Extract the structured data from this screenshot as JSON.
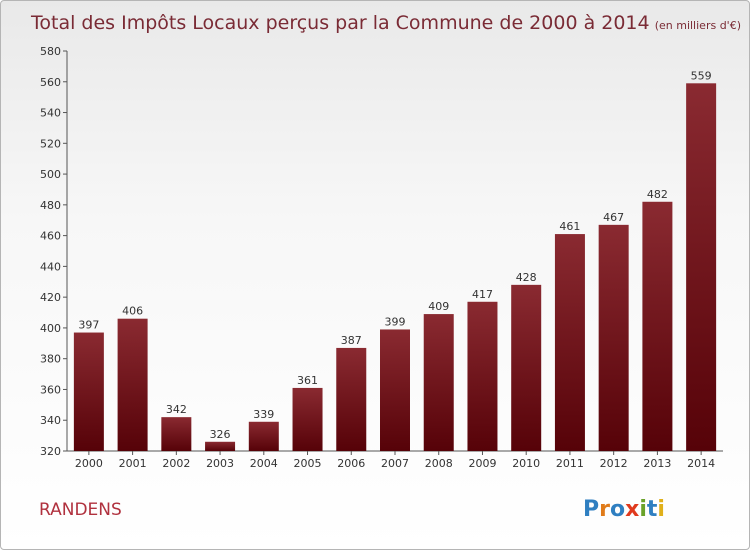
{
  "chart_data": {
    "type": "bar",
    "title": "Total des Impôts Locaux perçus par la Commune de 2000 à 2014",
    "subtitle": "(en milliers d'€)",
    "categories": [
      "2000",
      "2001",
      "2002",
      "2003",
      "2004",
      "2005",
      "2006",
      "2007",
      "2008",
      "2009",
      "2010",
      "2011",
      "2012",
      "2013",
      "2014"
    ],
    "values": [
      397,
      406,
      342,
      326,
      339,
      361,
      387,
      399,
      409,
      417,
      428,
      461,
      467,
      482,
      559
    ],
    "yticks": [
      320,
      340,
      360,
      380,
      400,
      420,
      440,
      460,
      480,
      500,
      520,
      540,
      560,
      580
    ],
    "ylim": [
      320,
      580
    ],
    "grid": false,
    "bar_color": "#6e0f17"
  },
  "commune_name": "RANDENS",
  "logo": {
    "text": "Proxiti",
    "letters": [
      {
        "ch": "P",
        "color": "#2f7fc1"
      },
      {
        "ch": "r",
        "color": "#e07b1a"
      },
      {
        "ch": "o",
        "color": "#2f7fc1"
      },
      {
        "ch": "x",
        "color": "#e03a1e"
      },
      {
        "ch": "i",
        "color": "#6aa22a"
      },
      {
        "ch": "t",
        "color": "#2f7fc1"
      },
      {
        "ch": "i",
        "color": "#e0b01a"
      }
    ]
  }
}
